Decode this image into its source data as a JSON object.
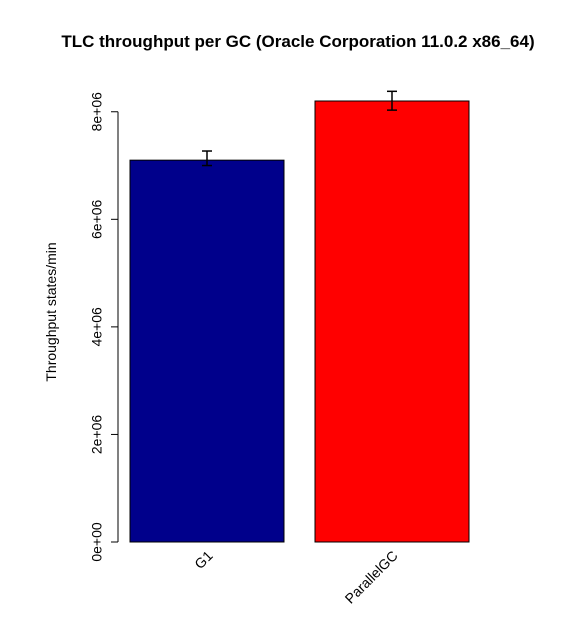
{
  "chart_data": {
    "type": "bar",
    "title": "TLC throughput per GC (Oracle Corporation 11.0.2 x86_64)",
    "xlabel": "",
    "ylabel": "Throughput states/min",
    "categories": [
      "G1",
      "ParallelGC"
    ],
    "values": [
      7100000,
      8200000
    ],
    "error_low": [
      7000000,
      8030000
    ],
    "error_high": [
      7270000,
      8380000
    ],
    "colors": [
      "#00008b",
      "#ff0000"
    ],
    "ylim": [
      0,
      8200000
    ],
    "yticks": [
      0,
      2000000,
      4000000,
      6000000,
      8000000
    ],
    "ytick_labels": [
      "0e+00",
      "2e+06",
      "4e+06",
      "6e+06",
      "8e+06"
    ],
    "grid": false,
    "legend": "none"
  }
}
